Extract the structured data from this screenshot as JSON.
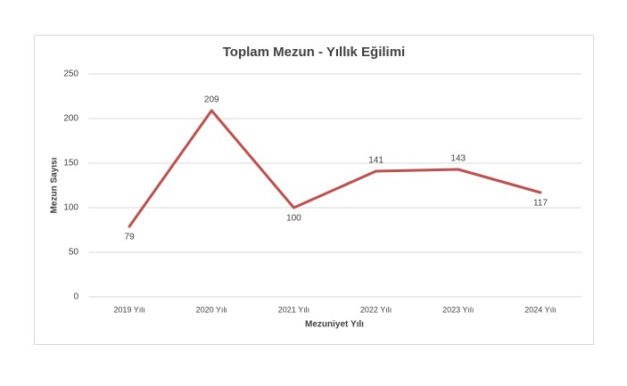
{
  "chart_data": {
    "type": "line",
    "title": "Toplam Mezun - Yıllık Eğilimi",
    "x_label": "Mezuniyet Yılı",
    "y_label": "Mezun Sayısı",
    "categories": [
      "2019 Yılı",
      "2020 Yılı",
      "2021 Yılı",
      "2022 Yılı",
      "2023 Yılı",
      "2024 Yılı"
    ],
    "series": [
      {
        "name": "Mezun Sayısı",
        "color": "#c0504d",
        "values": [
          79,
          209,
          100,
          141,
          143,
          117
        ]
      }
    ],
    "ylim": [
      0,
      250
    ],
    "yticks": [
      0,
      50,
      100,
      150,
      200,
      250
    ],
    "grid": true
  }
}
